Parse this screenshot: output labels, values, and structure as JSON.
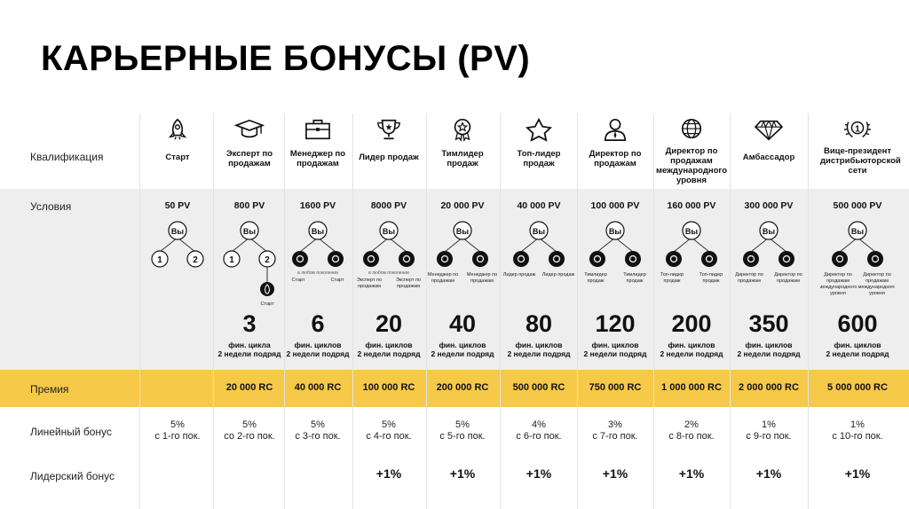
{
  "title": "КАРЬЕРНЫЕ БОНУСЫ (PV)",
  "rows": {
    "qualification": "Квалификация",
    "conditions": "Условия",
    "premium": "Премия",
    "linear": "Линейный бонус",
    "leader": "Лидерский бонус"
  },
  "you_label": "Вы",
  "columns": [
    {
      "name": "Старт",
      "icon": "rocket-icon",
      "pv": "50 PV",
      "tree": [
        "1",
        "2"
      ],
      "tree_labels": [],
      "big": "",
      "note": "",
      "prize": "",
      "lin_pct": "5%",
      "lin_desc": "с 1-го пок.",
      "lead": ""
    },
    {
      "name": "Эксперт по продажам",
      "icon": "graduation-cap-icon",
      "pv": "800 PV",
      "tree": [
        "1",
        "2"
      ],
      "tree_labels": [
        "Старт"
      ],
      "big": "3",
      "note": "фин. цикла 2 недели подряд",
      "prize": "20 000 RC",
      "lin_pct": "5%",
      "lin_desc": "со 2-го пок.",
      "lead": ""
    },
    {
      "name": "Менеджер по продажам",
      "icon": "briefcase-icon",
      "pv": "1600 PV",
      "tree": [],
      "tree_labels": [
        "Старт",
        "Старт"
      ],
      "sub_note": "в любом поколении",
      "big": "6",
      "note": "фин. циклов 2 недели подряд",
      "prize": "40 000 RC",
      "lin_pct": "5%",
      "lin_desc": "с 3-го пок.",
      "lead": ""
    },
    {
      "name": "Лидер продаж",
      "icon": "trophy-icon",
      "pv": "8000 PV",
      "tree": [],
      "tree_labels": [
        "Эксперт по продажам",
        "Эксперт по продажам"
      ],
      "sub_note": "в любом поколении",
      "big": "20",
      "note": "фин. циклов 2 недели подряд",
      "prize": "100 000 RC",
      "lin_pct": "5%",
      "lin_desc": "с 4-го пок.",
      "lead": "+1%"
    },
    {
      "name": "Тимлидер продаж",
      "icon": "medal-icon",
      "pv": "20 000 PV",
      "tree": [],
      "tree_labels": [
        "Менеджер по продажам",
        "Менеджер по продажам"
      ],
      "big": "40",
      "note": "фин. циклов 2 недели подряд",
      "prize": "200 000 RC",
      "lin_pct": "5%",
      "lin_desc": "с 5-го пок.",
      "lead": "+1%"
    },
    {
      "name": "Топ-лидер продаж",
      "icon": "star-icon",
      "pv": "40 000 PV",
      "tree": [],
      "tree_labels": [
        "Лидер продаж",
        "Лидер продаж"
      ],
      "big": "80",
      "note": "фин. циклов 2 недели подряд",
      "prize": "500 000 RC",
      "lin_pct": "4%",
      "lin_desc": "с 6-го пок.",
      "lead": "+1%"
    },
    {
      "name": "Директор по продажам",
      "icon": "manager-icon",
      "pv": "100 000 PV",
      "tree": [],
      "tree_labels": [
        "Тимлидер продаж",
        "Тимлидер продаж"
      ],
      "big": "120",
      "note": "фин. циклов 2 недели подряд",
      "prize": "750 000 RC",
      "lin_pct": "3%",
      "lin_desc": "с 7-го пок.",
      "lead": "+1%"
    },
    {
      "name": "Директор по продажам международного уровня",
      "icon": "globe-icon",
      "pv": "160 000 PV",
      "tree": [],
      "tree_labels": [
        "Топ-лидер продаж",
        "Топ-лидер продаж"
      ],
      "big": "200",
      "note": "фин. циклов 2 недели подряд",
      "prize": "1 000 000 RC",
      "lin_pct": "2%",
      "lin_desc": "с 8-го пок.",
      "lead": "+1%"
    },
    {
      "name": "Амбассадор",
      "icon": "diamond-icon",
      "pv": "300 000 PV",
      "tree": [],
      "tree_labels": [
        "Директор по продажам",
        "Директор по продажам"
      ],
      "big": "350",
      "note": "фин. циклов 2 недели подряд",
      "prize": "2 000 000 RC",
      "lin_pct": "1%",
      "lin_desc": "с 9-го пок.",
      "lead": "+1%"
    },
    {
      "name": "Вице-президент дистрибьюторской сети",
      "icon": "laurel-one-icon",
      "pv": "500 000 PV",
      "tree": [],
      "tree_labels": [
        "Директор по продажам международного уровня",
        "Директор по продажам международного уровня"
      ],
      "big": "600",
      "note": "фин. циклов 2 недели подряд",
      "prize": "5 000 000 RC",
      "lin_pct": "1%",
      "lin_desc": "с 10-го пок.",
      "lead": "+1%"
    }
  ],
  "colors": {
    "gray_band": "#eeeeee",
    "yellow_band": "#f7c948",
    "node_dark": "#111111"
  }
}
